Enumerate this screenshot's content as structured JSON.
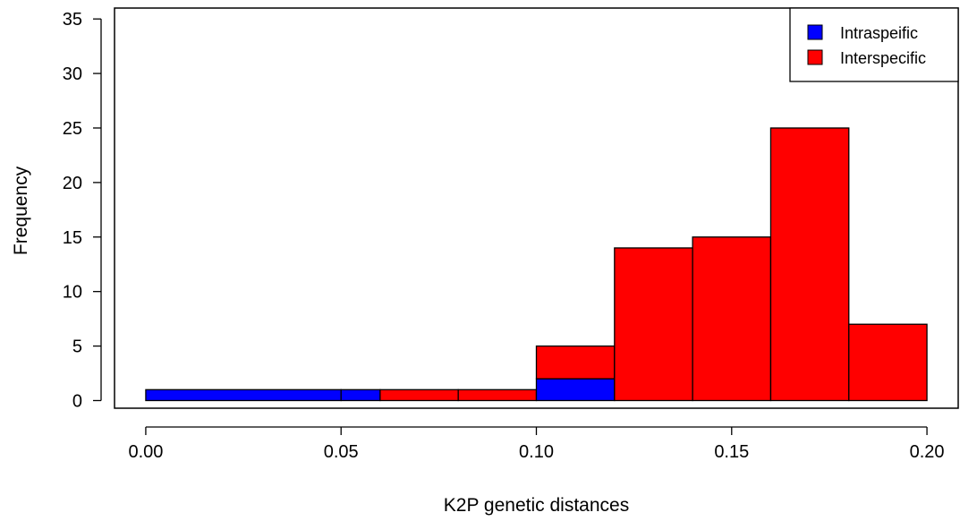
{
  "chart_data": {
    "type": "bar",
    "subtype": "stacked-histogram",
    "title": "",
    "xlabel": "K2P genetic distances",
    "ylabel": "Frequency",
    "xlim": [
      -0.008,
      0.208
    ],
    "ylim": [
      -0.7,
      36.0
    ],
    "x_ticks": [
      0.0,
      0.05,
      0.1,
      0.15,
      0.2
    ],
    "x_tick_labels": [
      "0.00",
      "0.05",
      "0.10",
      "0.15",
      "0.20"
    ],
    "y_ticks": [
      0,
      5,
      10,
      15,
      20,
      25,
      30,
      35
    ],
    "y_tick_labels": [
      "0",
      "5",
      "10",
      "15",
      "20",
      "25",
      "30",
      "35"
    ],
    "grid": false,
    "legend": {
      "position": "top-right"
    },
    "bin_edges": [
      0.0,
      0.05,
      0.06,
      0.08,
      0.1,
      0.12,
      0.14,
      0.16,
      0.18,
      0.2
    ],
    "series": [
      {
        "name": "Intraspeific",
        "color": "#0000ff",
        "values": [
          1,
          1,
          0,
          0,
          2,
          0,
          0,
          0,
          0
        ]
      },
      {
        "name": "Interspecific",
        "color": "#ff0000",
        "values": [
          0,
          0,
          1,
          1,
          3,
          14,
          15,
          25,
          7
        ]
      }
    ]
  }
}
